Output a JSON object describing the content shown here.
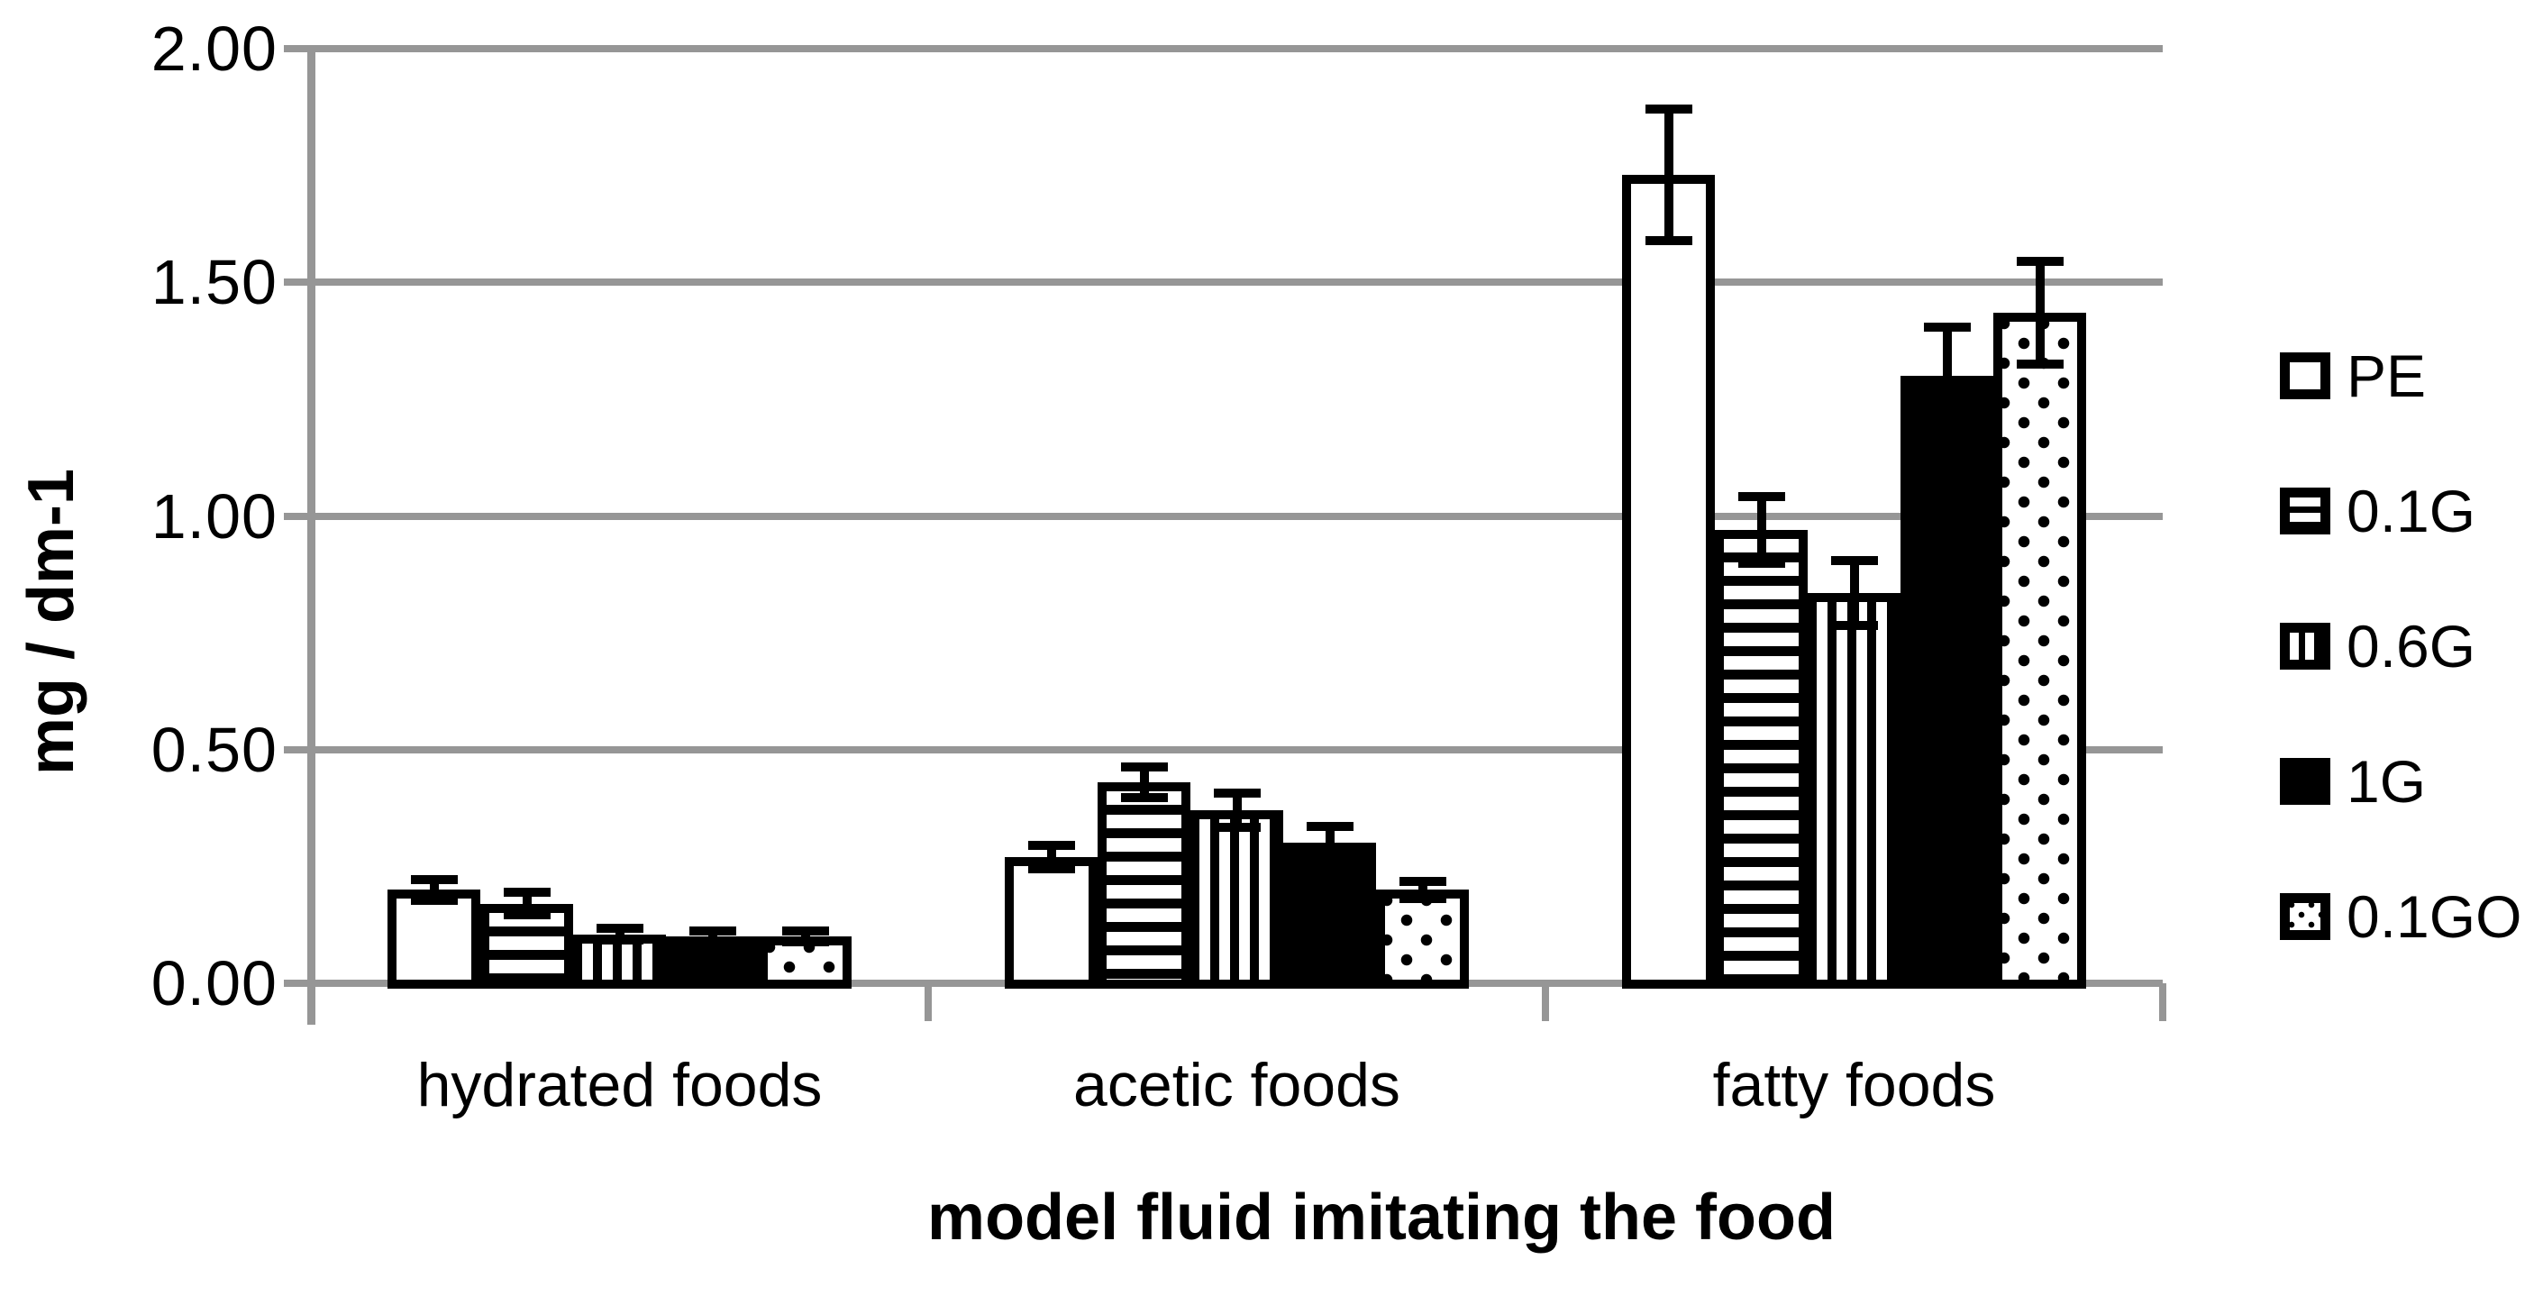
{
  "colors": {
    "background": "#ffffff",
    "axis_and_grid": "#969696",
    "bar_outline": "#000000",
    "text": "#000000"
  },
  "chart_data": {
    "type": "bar",
    "title": "",
    "xlabel": "model fluid imitating the food",
    "ylabel": "mg / dm-1",
    "categories": [
      "hydrated foods",
      "acetic foods",
      "fatty foods"
    ],
    "series": [
      {
        "name": "PE",
        "pattern": "white",
        "values": [
          0.2,
          0.27,
          1.73
        ],
        "errors": [
          0.022,
          0.025,
          0.14
        ]
      },
      {
        "name": "0.1G",
        "pattern": "horizontal-stripes",
        "values": [
          0.17,
          0.43,
          0.97
        ],
        "errors": [
          0.024,
          0.033,
          0.072
        ]
      },
      {
        "name": "0.6G",
        "pattern": "vertical-stripes",
        "values": [
          0.105,
          0.37,
          0.835
        ],
        "errors": [
          0.013,
          0.036,
          0.07
        ]
      },
      {
        "name": "1G",
        "pattern": "solid-black",
        "values": [
          0.1,
          0.3,
          1.3
        ],
        "errors": [
          0.012,
          0.035,
          0.105
        ]
      },
      {
        "name": "0.1GO",
        "pattern": "dotted",
        "values": [
          0.1,
          0.2,
          1.435
        ],
        "errors": [
          0.012,
          0.018,
          0.11
        ]
      }
    ],
    "y_ticks": [
      "2.00",
      "1.50",
      "1.00",
      "0.50",
      "0.00"
    ],
    "ylim": [
      0.0,
      2.0
    ],
    "grid": true,
    "error_bars": true,
    "legend_position": "right"
  }
}
